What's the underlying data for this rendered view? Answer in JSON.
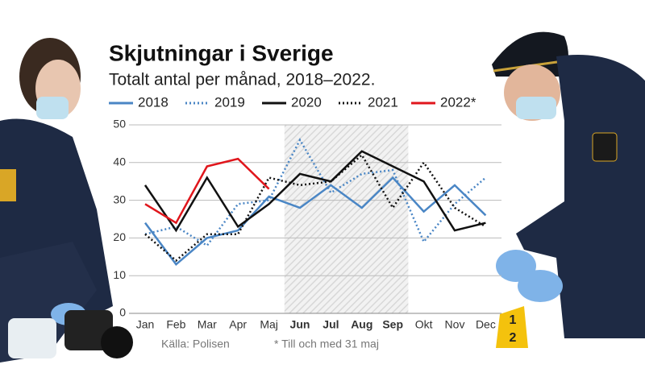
{
  "chart_data": {
    "type": "line",
    "title": "Skjutningar i Sverige",
    "subtitle": "Totalt antal per månad, 2018–2022.",
    "categories": [
      "Jan",
      "Feb",
      "Mar",
      "Apr",
      "Maj",
      "Jun",
      "Jul",
      "Aug",
      "Sep",
      "Okt",
      "Nov",
      "Dec"
    ],
    "highlight": [
      5,
      8
    ],
    "series": [
      {
        "name": "2018",
        "color": "#4a86c5",
        "dashed": false,
        "values": [
          24,
          13,
          20,
          22,
          31,
          28,
          34,
          28,
          36,
          27,
          34,
          26
        ]
      },
      {
        "name": "2019",
        "color": "#4a86c5",
        "dashed": true,
        "values": [
          21,
          23,
          18,
          29,
          30,
          46,
          32,
          37,
          38,
          19,
          29,
          36
        ]
      },
      {
        "name": "2020",
        "color": "#111111",
        "dashed": false,
        "values": [
          34,
          22,
          36,
          23,
          29,
          37,
          35,
          43,
          39,
          35,
          22,
          24
        ]
      },
      {
        "name": "2021",
        "color": "#111111",
        "dashed": true,
        "values": [
          21,
          14,
          21,
          21,
          36,
          34,
          35,
          42,
          28,
          40,
          28,
          23
        ]
      },
      {
        "name": "2022*",
        "color": "#e0161c",
        "dashed": false,
        "values": [
          29,
          24,
          39,
          41,
          33,
          null,
          null,
          null,
          null,
          null,
          null,
          null
        ]
      }
    ],
    "ylim": [
      0,
      50
    ],
    "yticks": [
      0,
      10,
      20,
      30,
      40,
      50
    ],
    "grid": true,
    "annotations": [
      "Källa: Polisen",
      "* Till och med 31 maj"
    ]
  }
}
